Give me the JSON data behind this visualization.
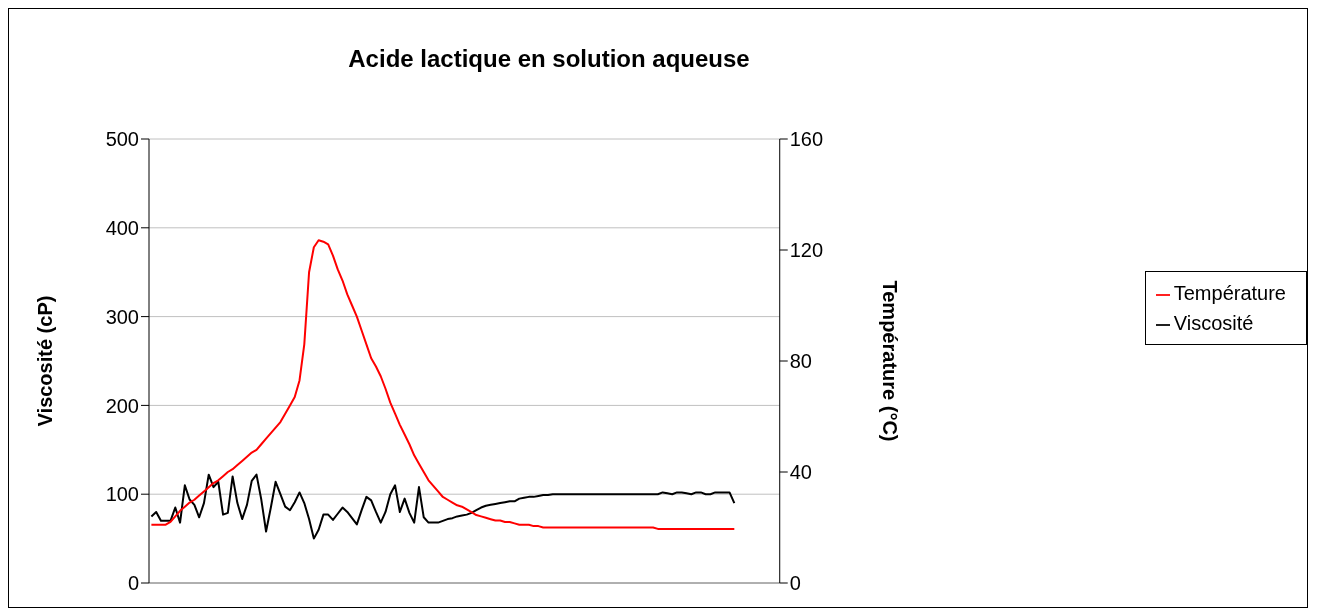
{
  "chart_data": {
    "type": "line",
    "title": "Acide lactique en solution aqueuse",
    "ylabel": "Viscosité (cP)",
    "y2label": "Température (°C)",
    "categories": [
      null,
      null,
      null,
      null,
      null,
      null,
      null,
      null,
      null,
      null,
      null,
      null,
      null,
      null,
      null,
      null,
      null,
      null,
      null,
      null,
      null,
      null,
      null,
      null,
      null,
      null,
      null,
      null,
      null,
      null,
      null,
      null,
      null,
      null,
      null,
      null,
      null,
      null,
      null,
      null,
      null,
      null,
      null,
      null,
      null,
      null,
      null,
      null,
      null,
      null,
      null,
      null,
      null,
      null,
      null,
      null,
      null,
      null,
      null,
      null,
      null,
      null,
      null,
      null,
      null,
      null,
      null,
      null,
      null,
      null,
      null,
      null,
      null,
      null,
      null,
      null,
      null,
      null,
      null,
      null,
      null,
      null,
      null,
      null,
      null,
      null,
      null,
      null,
      null,
      null,
      null,
      null,
      null,
      null,
      null,
      null,
      null,
      null,
      null,
      null,
      null,
      null,
      null,
      null,
      null,
      null,
      null,
      null,
      null,
      null,
      null,
      null,
      null,
      null,
      null,
      null,
      null,
      null,
      null,
      null,
      null,
      null,
      null,
      null,
      null,
      null,
      null,
      null,
      null,
      null,
      null,
      null
    ],
    "series": [
      {
        "name": "Viscosité",
        "color": "#000000",
        "values": [
          75,
          80,
          70,
          70,
          70,
          85,
          68,
          110,
          94,
          88,
          74,
          90,
          122,
          108,
          114,
          77,
          79,
          120,
          90,
          72,
          88,
          115,
          122,
          94,
          58,
          85,
          114,
          100,
          86,
          82,
          91,
          102,
          90,
          72,
          50,
          60,
          77,
          77,
          71,
          78,
          85,
          80,
          73,
          66,
          82,
          97,
          93,
          80,
          68,
          80,
          100,
          110,
          80,
          95,
          79,
          68,
          108,
          74,
          68,
          68,
          68,
          70,
          72,
          73,
          75,
          76,
          77,
          79,
          82,
          85,
          87,
          88,
          89,
          90,
          91,
          92,
          92,
          95,
          96,
          97,
          97,
          98,
          99,
          99,
          100,
          100,
          100,
          100,
          100,
          100,
          100,
          100,
          100,
          100,
          100,
          100,
          100,
          100,
          100,
          100,
          100,
          100,
          100,
          100,
          100,
          100,
          100,
          102,
          101,
          100,
          102,
          102,
          101,
          100,
          102,
          102,
          100,
          100,
          102,
          102,
          102,
          102,
          90,
          null,
          null,
          null,
          null,
          null,
          null,
          null,
          null,
          null
        ]
      },
      {
        "name": "Température",
        "color": "#ff0000",
        "axis": "y2",
        "values": [
          21,
          21,
          21,
          21,
          22,
          24,
          26,
          27.5,
          29,
          30,
          31.5,
          33,
          34.5,
          36,
          37,
          38.5,
          40,
          41,
          42.5,
          44,
          45.5,
          47,
          48,
          50,
          52,
          54,
          56,
          58,
          61,
          64,
          67,
          73,
          86,
          112,
          121,
          123.5,
          123,
          122,
          118,
          113,
          109,
          104,
          100,
          96,
          91,
          86,
          81,
          78,
          74.5,
          70,
          65,
          61,
          57,
          53.5,
          50,
          46,
          43,
          40,
          37,
          35,
          33,
          31,
          30,
          29,
          28,
          27.5,
          26.5,
          25.5,
          24.5,
          24,
          23.5,
          23,
          22.5,
          22.5,
          22,
          22,
          21.5,
          21,
          21,
          21,
          20.5,
          20.5,
          20,
          20,
          20,
          20,
          20,
          20,
          20,
          20,
          20,
          20,
          20,
          20,
          20,
          20,
          20,
          20,
          20,
          20,
          20,
          20,
          20,
          20,
          20,
          20,
          19.5,
          19.5,
          19.5,
          19.5,
          19.5,
          19.5,
          19.5,
          19.5,
          19.5,
          19.5,
          19.5,
          19.5,
          19.5,
          19.5,
          19.5,
          19.5,
          19.5,
          null,
          null,
          null,
          null,
          null,
          null,
          null,
          null,
          null
        ]
      }
    ],
    "ylim": [
      0,
      500
    ],
    "yticks": [
      0,
      100,
      200,
      300,
      400,
      500
    ],
    "y2lim": [
      0,
      160
    ],
    "y2ticks": [
      0,
      40,
      80,
      120,
      160
    ],
    "grid": "y",
    "legend": "right",
    "marker": "none",
    "line_style": "solid"
  }
}
